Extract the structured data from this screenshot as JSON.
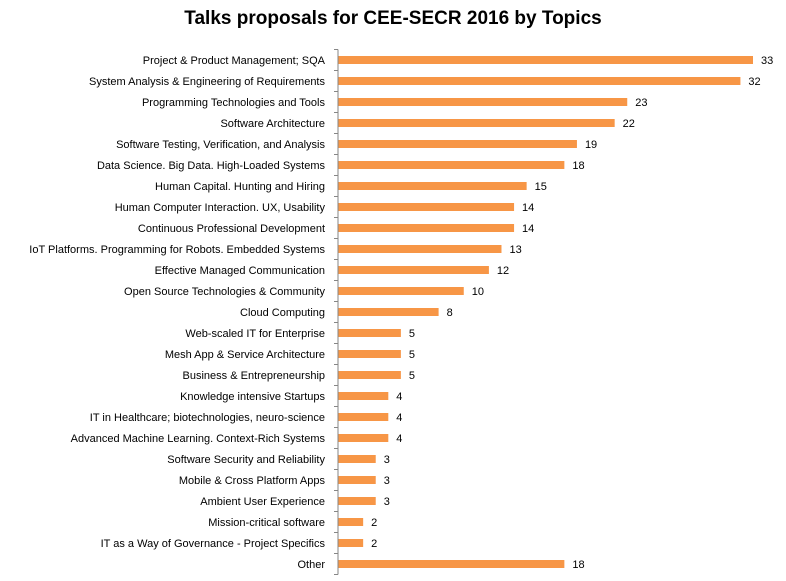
{
  "chart_data": {
    "type": "bar",
    "orientation": "horizontal",
    "title": "Talks proposals for CEE-SECR 2016 by Topics",
    "xlabel": "",
    "ylabel": "",
    "xlim": [
      0,
      35
    ],
    "grid": false,
    "legend": "none",
    "bar_color": "#F79646",
    "data_labels": true,
    "categories": [
      "Project & Product Management;  SQA",
      "System Analysis & Engineering of Requirements",
      "Programming Technologies and Tools",
      "Software Architecture",
      "Software Testing, Verification, and Analysis",
      "Data Science. Big Data. High-Loaded Systems",
      "Human Capital.  Hunting and Hiring",
      "Human Computer Interaction. UX, Usability",
      "Continuous Professional Development",
      "IoT Platforms.  Programming for Robots. Embedded Systems",
      "Effective Managed Communication",
      "Open Source Technologies & Community",
      "Cloud Computing",
      "Web-scaled IT for Enterprise",
      "Mesh App & Service Architecture",
      "Business & Entrepreneurship",
      "Knowledge intensive Startups",
      "IT in Healthcare; biotechnologies, neuro-science",
      "Advanced Machine Learning. Context-Rich Systems",
      "Software Security and Reliability",
      "Mobile & Cross Platform Apps",
      "Ambient User Experience",
      "Mission-critical software",
      "IT as a Way of Governance - Project Specifics",
      "Other"
    ],
    "values": [
      33,
      32,
      23,
      22,
      19,
      18,
      15,
      14,
      14,
      13,
      12,
      10,
      8,
      5,
      5,
      5,
      4,
      4,
      4,
      3,
      3,
      3,
      2,
      2,
      18
    ]
  }
}
